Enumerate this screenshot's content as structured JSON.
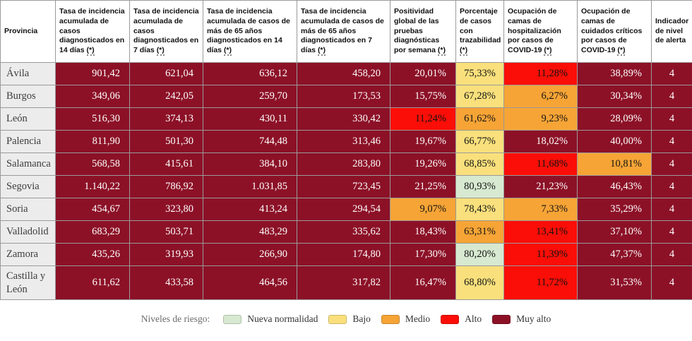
{
  "palette": {
    "nueva_normalidad": "#d7e9d0",
    "bajo": "#f9e07c",
    "medio": "#f6a436",
    "alto": "#fb0e07",
    "muy_alto": "#8c1127",
    "text_on_dark": "#ffffff",
    "text_on_light": "#131313",
    "province_bg": "#ececec"
  },
  "chart_data": {
    "type": "table",
    "columns": [
      {
        "label": "Provincia",
        "suffix": ""
      },
      {
        "label": "Tasa de incidencia acumulada de casos diagnosticados en 14 días ",
        "suffix": "(*)"
      },
      {
        "label": "Tasa de incidencia acumulada de casos diagnosticados en 7 días ",
        "suffix": "(*)"
      },
      {
        "label": "Tasa de incidencia acumulada de casos de más de 65 años diagnosticados en 14 días ",
        "suffix": "(*)"
      },
      {
        "label": "Tasa de incidencia acumulada de casos de más de 65 años diagnosticados en 7 días ",
        "suffix": "(*)"
      },
      {
        "label": "Positividad global de las pruebas diagnósticas por semana ",
        "suffix": "(*)"
      },
      {
        "label": "Porcentaje de casos con trazabilidad ",
        "suffix": "(*)"
      },
      {
        "label": "Ocupación de camas de hospitalización por casos de COVID-19 ",
        "suffix": "(*)"
      },
      {
        "label": "Ocupación de camas de cuidados críticos por casos de COVID-19 ",
        "suffix": "(*)"
      },
      {
        "label": "Indicador de nivel de alerta",
        "suffix": ""
      }
    ],
    "rows": [
      {
        "province": "Ávila",
        "total": false,
        "cells": [
          {
            "v": "901,42",
            "level": "muy_alto"
          },
          {
            "v": "621,04",
            "level": "muy_alto"
          },
          {
            "v": "636,12",
            "level": "muy_alto"
          },
          {
            "v": "458,20",
            "level": "muy_alto"
          },
          {
            "v": "20,01%",
            "level": "muy_alto"
          },
          {
            "v": "75,33%",
            "level": "bajo"
          },
          {
            "v": "11,28%",
            "level": "alto"
          },
          {
            "v": "38,89%",
            "level": "muy_alto"
          },
          {
            "v": "4",
            "level": "muy_alto"
          }
        ]
      },
      {
        "province": "Burgos",
        "total": false,
        "cells": [
          {
            "v": "349,06",
            "level": "muy_alto"
          },
          {
            "v": "242,05",
            "level": "muy_alto"
          },
          {
            "v": "259,70",
            "level": "muy_alto"
          },
          {
            "v": "173,53",
            "level": "muy_alto"
          },
          {
            "v": "15,75%",
            "level": "muy_alto"
          },
          {
            "v": "67,28%",
            "level": "bajo"
          },
          {
            "v": "6,27%",
            "level": "medio"
          },
          {
            "v": "30,34%",
            "level": "muy_alto"
          },
          {
            "v": "4",
            "level": "muy_alto"
          }
        ]
      },
      {
        "province": "León",
        "total": false,
        "cells": [
          {
            "v": "516,30",
            "level": "muy_alto"
          },
          {
            "v": "374,13",
            "level": "muy_alto"
          },
          {
            "v": "430,11",
            "level": "muy_alto"
          },
          {
            "v": "330,42",
            "level": "muy_alto"
          },
          {
            "v": "11,24%",
            "level": "alto"
          },
          {
            "v": "61,62%",
            "level": "medio"
          },
          {
            "v": "9,23%",
            "level": "medio"
          },
          {
            "v": "28,09%",
            "level": "muy_alto"
          },
          {
            "v": "4",
            "level": "muy_alto"
          }
        ]
      },
      {
        "province": "Palencia",
        "total": false,
        "cells": [
          {
            "v": "811,90",
            "level": "muy_alto"
          },
          {
            "v": "501,30",
            "level": "muy_alto"
          },
          {
            "v": "744,48",
            "level": "muy_alto"
          },
          {
            "v": "313,46",
            "level": "muy_alto"
          },
          {
            "v": "19,67%",
            "level": "muy_alto"
          },
          {
            "v": "66,77%",
            "level": "bajo"
          },
          {
            "v": "18,02%",
            "level": "muy_alto"
          },
          {
            "v": "40,00%",
            "level": "muy_alto"
          },
          {
            "v": "4",
            "level": "muy_alto"
          }
        ]
      },
      {
        "province": "Salamanca",
        "total": false,
        "cells": [
          {
            "v": "568,58",
            "level": "muy_alto"
          },
          {
            "v": "415,61",
            "level": "muy_alto"
          },
          {
            "v": "384,10",
            "level": "muy_alto"
          },
          {
            "v": "283,80",
            "level": "muy_alto"
          },
          {
            "v": "19,26%",
            "level": "muy_alto"
          },
          {
            "v": "68,85%",
            "level": "bajo"
          },
          {
            "v": "11,68%",
            "level": "alto"
          },
          {
            "v": "10,81%",
            "level": "medio"
          },
          {
            "v": "4",
            "level": "muy_alto"
          }
        ]
      },
      {
        "province": "Segovia",
        "total": false,
        "cells": [
          {
            "v": "1.140,22",
            "level": "muy_alto"
          },
          {
            "v": "786,92",
            "level": "muy_alto"
          },
          {
            "v": "1.031,85",
            "level": "muy_alto"
          },
          {
            "v": "723,45",
            "level": "muy_alto"
          },
          {
            "v": "21,25%",
            "level": "muy_alto"
          },
          {
            "v": "80,93%",
            "level": "nueva_normalidad"
          },
          {
            "v": "21,23%",
            "level": "muy_alto"
          },
          {
            "v": "46,43%",
            "level": "muy_alto"
          },
          {
            "v": "4",
            "level": "muy_alto"
          }
        ]
      },
      {
        "province": "Soria",
        "total": false,
        "cells": [
          {
            "v": "454,67",
            "level": "muy_alto"
          },
          {
            "v": "323,80",
            "level": "muy_alto"
          },
          {
            "v": "413,24",
            "level": "muy_alto"
          },
          {
            "v": "294,54",
            "level": "muy_alto"
          },
          {
            "v": "9,07%",
            "level": "medio"
          },
          {
            "v": "78,43%",
            "level": "bajo"
          },
          {
            "v": "7,33%",
            "level": "medio"
          },
          {
            "v": "35,29%",
            "level": "muy_alto"
          },
          {
            "v": "4",
            "level": "muy_alto"
          }
        ]
      },
      {
        "province": "Valladolid",
        "total": false,
        "cells": [
          {
            "v": "683,29",
            "level": "muy_alto"
          },
          {
            "v": "503,71",
            "level": "muy_alto"
          },
          {
            "v": "483,29",
            "level": "muy_alto"
          },
          {
            "v": "335,62",
            "level": "muy_alto"
          },
          {
            "v": "18,43%",
            "level": "muy_alto"
          },
          {
            "v": "63,31%",
            "level": "medio"
          },
          {
            "v": "13,41%",
            "level": "alto"
          },
          {
            "v": "37,10%",
            "level": "muy_alto"
          },
          {
            "v": "4",
            "level": "muy_alto"
          }
        ]
      },
      {
        "province": "Zamora",
        "total": false,
        "cells": [
          {
            "v": "435,26",
            "level": "muy_alto"
          },
          {
            "v": "319,93",
            "level": "muy_alto"
          },
          {
            "v": "266,90",
            "level": "muy_alto"
          },
          {
            "v": "174,80",
            "level": "muy_alto"
          },
          {
            "v": "17,30%",
            "level": "muy_alto"
          },
          {
            "v": "80,20%",
            "level": "nueva_normalidad"
          },
          {
            "v": "11,39%",
            "level": "alto"
          },
          {
            "v": "47,37%",
            "level": "muy_alto"
          },
          {
            "v": "4",
            "level": "muy_alto"
          }
        ]
      },
      {
        "province": "Castilla y León",
        "total": true,
        "cells": [
          {
            "v": "611,62",
            "level": "muy_alto"
          },
          {
            "v": "433,58",
            "level": "muy_alto"
          },
          {
            "v": "464,56",
            "level": "muy_alto"
          },
          {
            "v": "317,82",
            "level": "muy_alto"
          },
          {
            "v": "16,47%",
            "level": "muy_alto"
          },
          {
            "v": "68,80%",
            "level": "bajo"
          },
          {
            "v": "11,72%",
            "level": "alto"
          },
          {
            "v": "31,53%",
            "level": "muy_alto"
          },
          {
            "v": "4",
            "level": "muy_alto"
          }
        ]
      }
    ],
    "legend": {
      "title": "Niveles de riesgo:",
      "position": "bottom-center",
      "items": [
        {
          "label": "Nueva normalidad",
          "level": "nueva_normalidad"
        },
        {
          "label": "Bajo",
          "level": "bajo"
        },
        {
          "label": "Medio",
          "level": "medio"
        },
        {
          "label": "Alto",
          "level": "alto"
        },
        {
          "label": "Muy alto",
          "level": "muy_alto"
        }
      ]
    }
  }
}
